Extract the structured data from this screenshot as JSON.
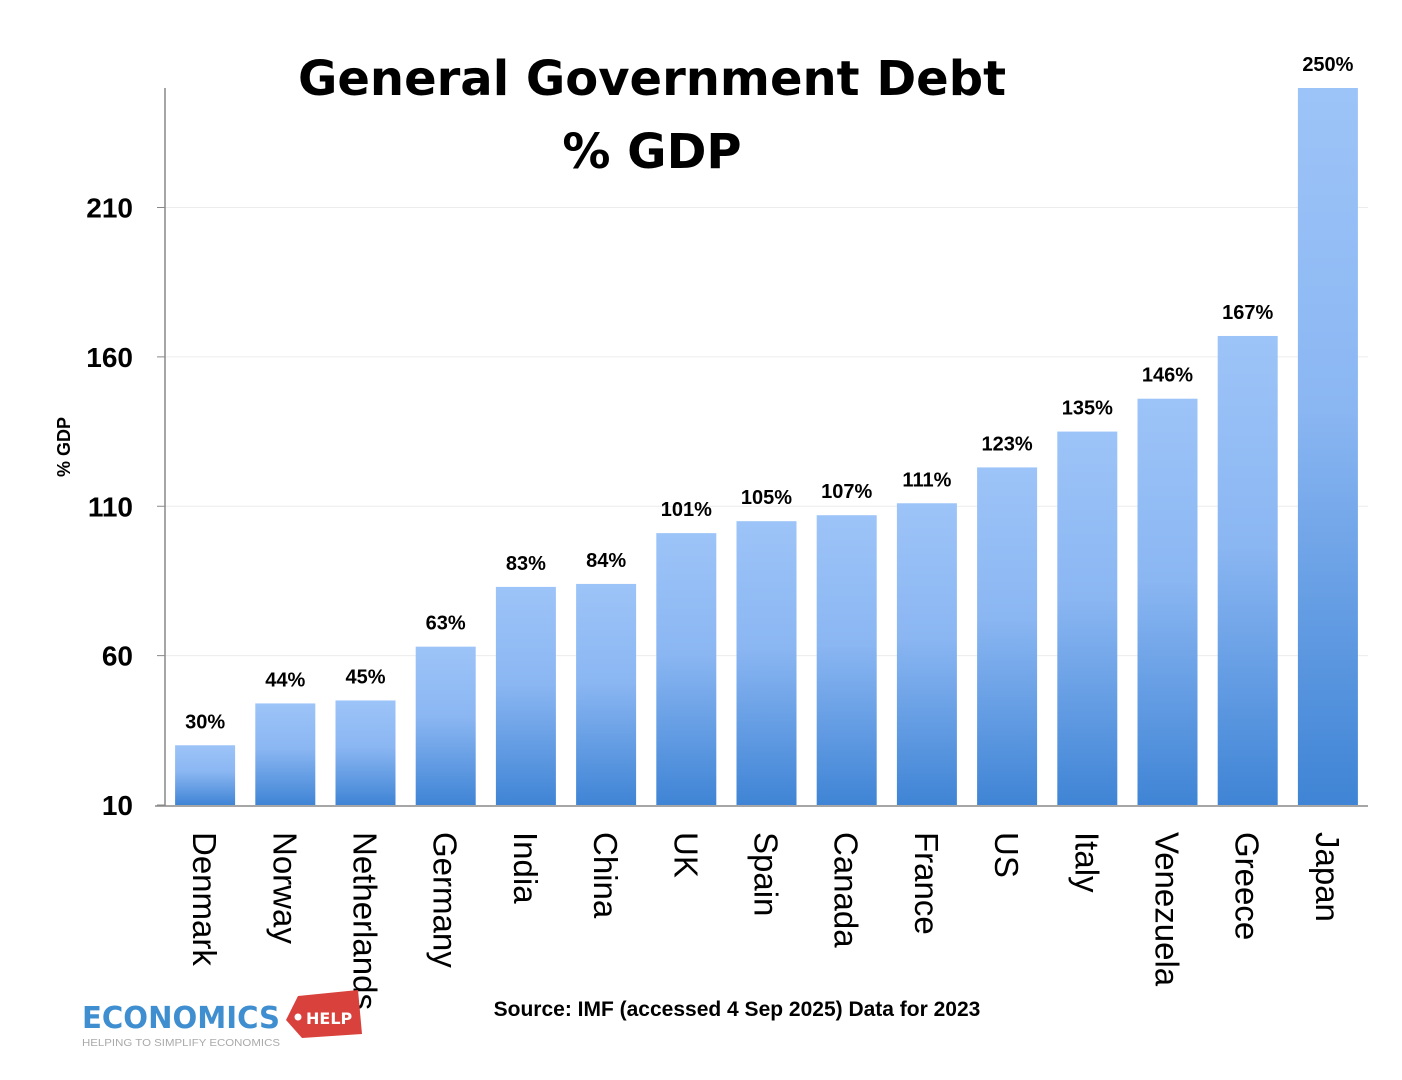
{
  "chart_data": {
    "type": "bar",
    "title": "General Government Debt",
    "subtitle": "% GDP",
    "ylabel": "% GDP",
    "xlabel": "",
    "ylim": [
      10,
      250
    ],
    "yticks": [
      10,
      60,
      110,
      160,
      210
    ],
    "grid": true,
    "categories": [
      "Denmark",
      "Norway",
      "Netherlands",
      "Germany",
      "India",
      "China",
      "UK",
      "Spain",
      "Canada",
      "France",
      "US",
      "Italy",
      "Venezuela",
      "Greece",
      "Japan"
    ],
    "values": [
      30,
      44,
      45,
      63,
      83,
      84,
      101,
      105,
      107,
      111,
      123,
      135,
      146,
      167,
      250
    ],
    "data_labels": [
      "30%",
      "44%",
      "45%",
      "63%",
      "83%",
      "84%",
      "101%",
      "105%",
      "107%",
      "111%",
      "123%",
      "135%",
      "146%",
      "167%",
      "250%"
    ],
    "bar_color_top": "#9dc4f8",
    "bar_color_bottom": "#3f84d5"
  },
  "source": "Source: IMF (accessed 4 Sep 2025) Data for 2023",
  "logo": {
    "brand": "ECONOMICS",
    "tag": "HELP",
    "tagline": "HELPING TO SIMPLIFY ECONOMICS"
  }
}
